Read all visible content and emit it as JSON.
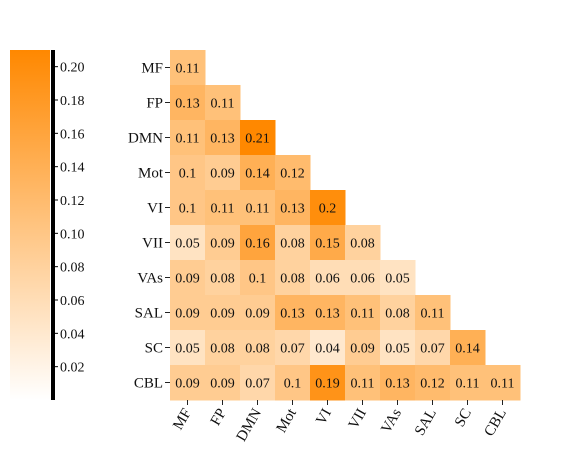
{
  "chart_data": {
    "type": "heatmap",
    "rows": [
      "MF",
      "FP",
      "DMN",
      "Mot",
      "VI",
      "VII",
      "VAs",
      "SAL",
      "SC",
      "CBL"
    ],
    "cols": [
      "MF",
      "FP",
      "DMN",
      "Mot",
      "VI",
      "VII",
      "VAs",
      "SAL",
      "SC",
      "CBL"
    ],
    "values": [
      [
        0.11
      ],
      [
        0.13,
        0.11
      ],
      [
        0.11,
        0.13,
        0.21
      ],
      [
        0.1,
        0.09,
        0.14,
        0.12
      ],
      [
        0.1,
        0.11,
        0.11,
        0.13,
        0.2
      ],
      [
        0.05,
        0.09,
        0.16,
        0.08,
        0.15,
        0.08
      ],
      [
        0.09,
        0.08,
        0.1,
        0.08,
        0.06,
        0.06,
        0.05
      ],
      [
        0.09,
        0.09,
        0.09,
        0.13,
        0.13,
        0.11,
        0.08,
        0.11
      ],
      [
        0.05,
        0.08,
        0.08,
        0.07,
        0.04,
        0.09,
        0.05,
        0.07,
        0.14
      ],
      [
        0.09,
        0.09,
        0.07,
        0.1,
        0.19,
        0.11,
        0.13,
        0.12,
        0.11,
        0.11
      ]
    ],
    "value_labels": [
      [
        "0.11"
      ],
      [
        "0.13",
        "0.11"
      ],
      [
        "0.11",
        "0.13",
        "0.21"
      ],
      [
        "0.1",
        "0.09",
        "0.14",
        "0.12"
      ],
      [
        "0.1",
        "0.11",
        "0.11",
        "0.13",
        "0.2"
      ],
      [
        "0.05",
        "0.09",
        "0.16",
        "0.08",
        "0.15",
        "0.08"
      ],
      [
        "0.09",
        "0.08",
        "0.1",
        "0.08",
        "0.06",
        "0.06",
        "0.05"
      ],
      [
        "0.09",
        "0.09",
        "0.09",
        "0.13",
        "0.13",
        "0.11",
        "0.08",
        "0.11"
      ],
      [
        "0.05",
        "0.08",
        "0.08",
        "0.07",
        "0.04",
        "0.09",
        "0.05",
        "0.07",
        "0.14"
      ],
      [
        "0.09",
        "0.09",
        "0.07",
        "0.1",
        "0.19",
        "0.11",
        "0.13",
        "0.12",
        "0.11",
        "0.11"
      ]
    ],
    "colorbar": {
      "range": [
        0,
        0.21
      ],
      "ticks": [
        0.02,
        0.04,
        0.06,
        0.08,
        0.1,
        0.12,
        0.14,
        0.16,
        0.18,
        0.2
      ],
      "tick_labels": [
        "0.02",
        "0.04",
        "0.06",
        "0.08",
        "0.10",
        "0.12",
        "0.14",
        "0.16",
        "0.18",
        "0.20"
      ],
      "placement": "left"
    },
    "colors": {
      "low": "#ffffff",
      "high": "#ff8800"
    },
    "title": "",
    "xlabel": "",
    "ylabel": ""
  }
}
